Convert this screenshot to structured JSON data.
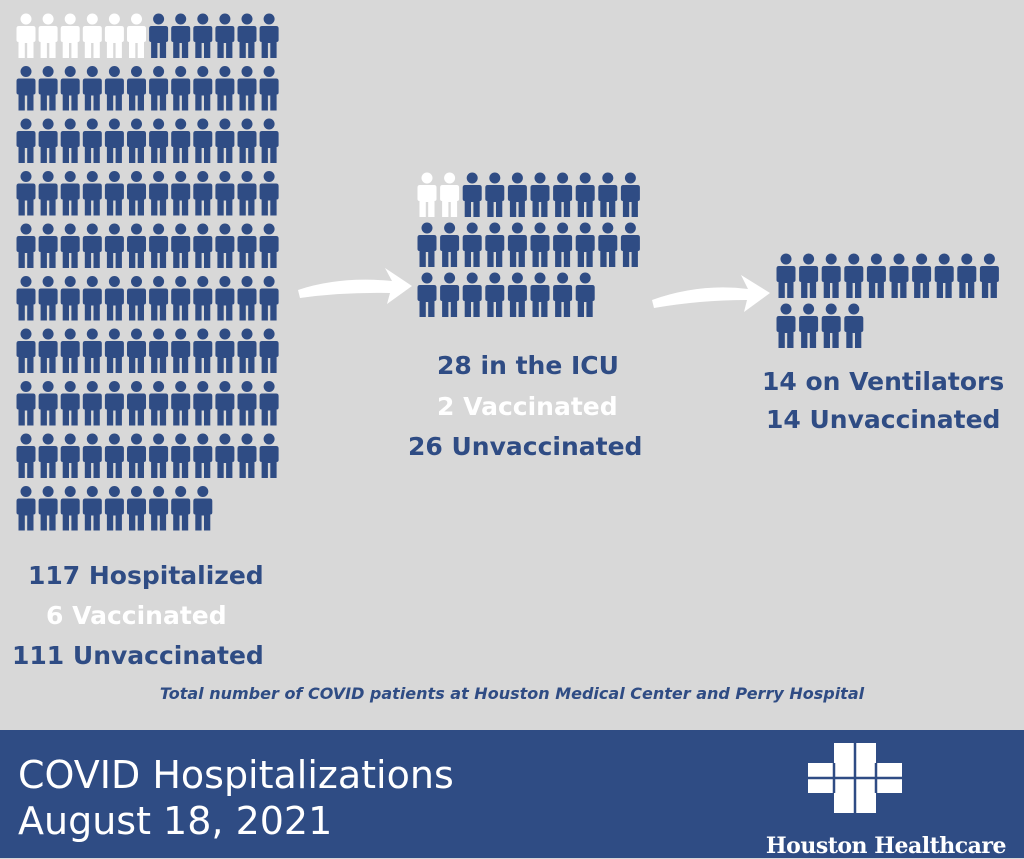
{
  "chart_data": {
    "type": "pictograph",
    "groups": [
      {
        "total_label": "117 Hospitalized",
        "vaccinated_label": "6 Vaccinated",
        "unvaccinated_label": "111  Unvaccinated",
        "total": 117,
        "vaccinated": 6,
        "unvaccinated": 111
      },
      {
        "total_label": "28 in the ICU",
        "vaccinated_label": "2 Vaccinated",
        "unvaccinated_label": "26 Unvaccinated",
        "total": 28,
        "vaccinated": 2,
        "unvaccinated": 26
      },
      {
        "total_label": "14 on Ventilators",
        "vaccinated_label": "",
        "unvaccinated_label": "14 Unvaccinated",
        "total": 14,
        "vaccinated": 0,
        "unvaccinated": 14
      }
    ],
    "caption": "Total number of COVID patients at Houston Medical Center and Perry Hospital",
    "colors": {
      "vaccinated": "#ffffff",
      "unvaccinated": "#2f4c84",
      "background": "#d8d8d8"
    }
  },
  "footer": {
    "title_line1": "COVID Hospitalizations",
    "title_line2": "August 18, 2021",
    "brand": "Houston Healthcare"
  },
  "icons": {
    "person": "person-icon",
    "arrow": "arrow-right-icon",
    "logo": "cross-logo-icon"
  }
}
